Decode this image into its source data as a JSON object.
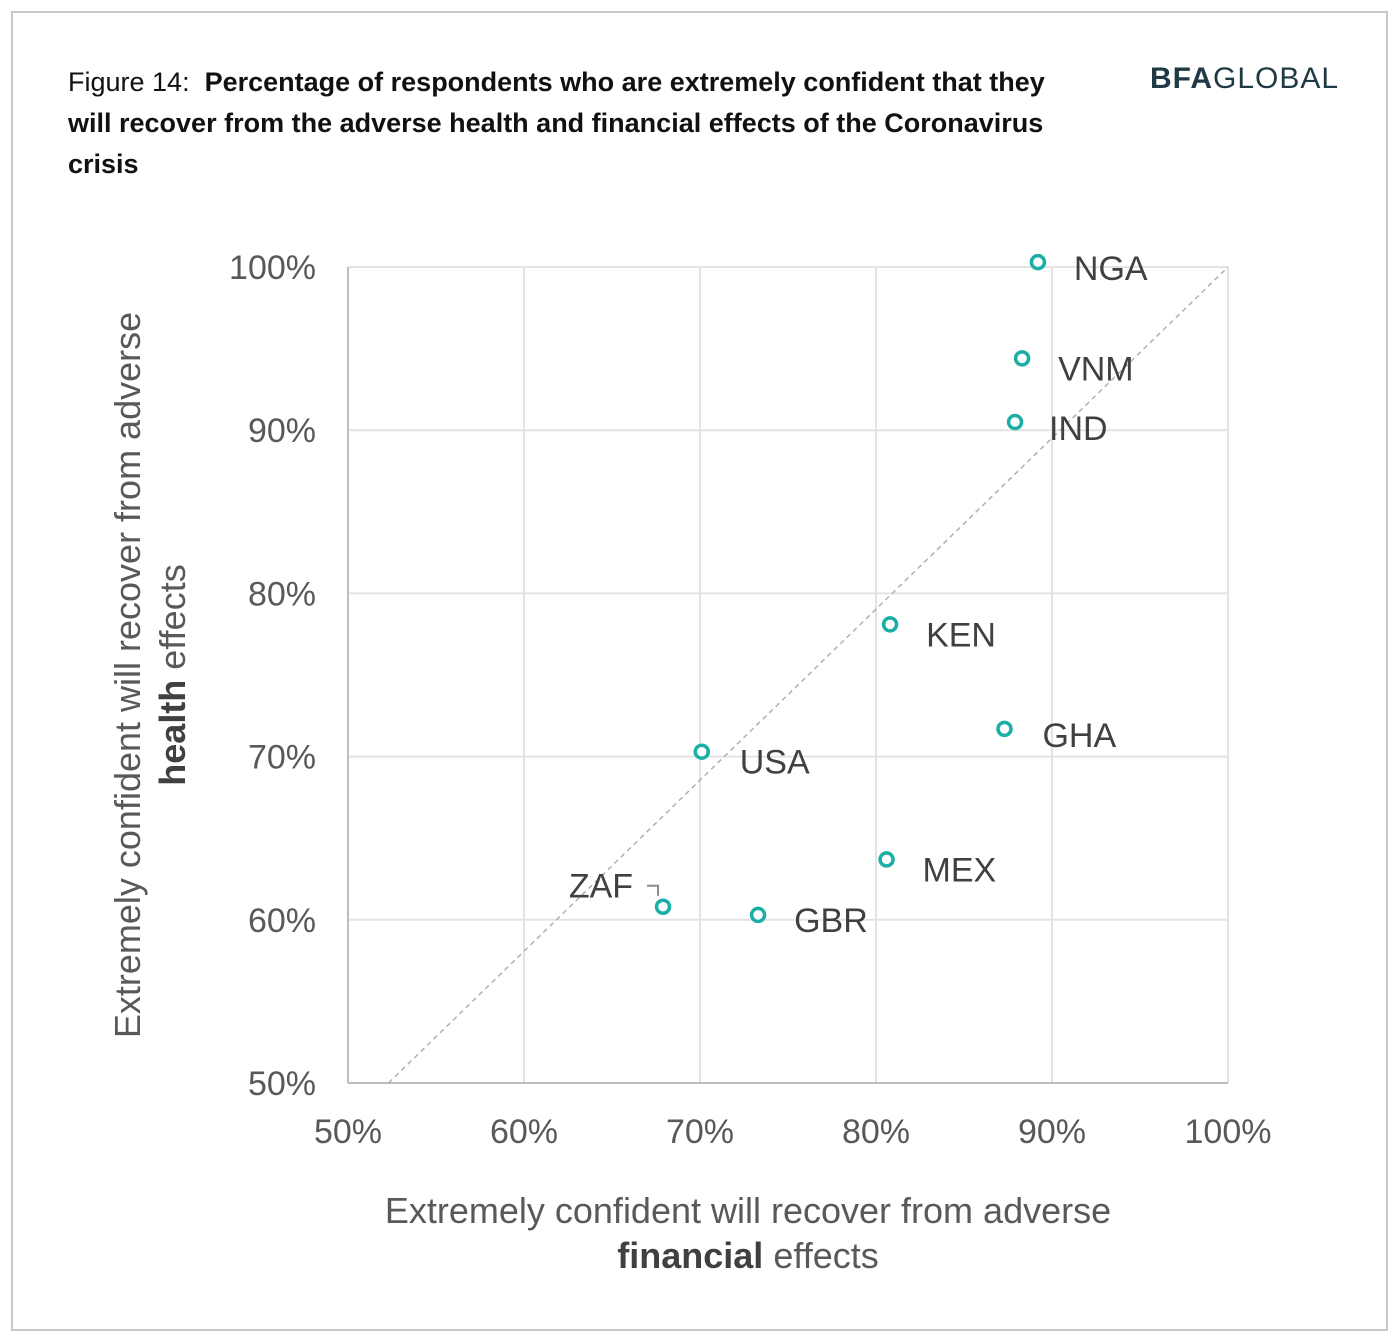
{
  "figure": {
    "prefix": "Figure 14:",
    "title": "Percentage of respondents who are extremely confident that they will recover from the adverse health and financial effects of the Coronavirus crisis"
  },
  "logo": {
    "part1": "BF",
    "part2": "A",
    "part3": "GLOBAL"
  },
  "chart_data": {
    "type": "scatter",
    "xlabel_line1": "Extremely confident will recover from adverse",
    "xlabel_bold": "financial",
    "xlabel_rest": " effects",
    "ylabel_line1": "Extremely confident will recover from adverse",
    "ylabel_bold": "health",
    "ylabel_rest": " effects",
    "xlim": [
      0.5,
      1.0
    ],
    "ylim": [
      0.5,
      1.0
    ],
    "xticks": [
      0.5,
      0.6,
      0.7,
      0.8,
      0.9,
      1.0
    ],
    "yticks": [
      0.5,
      0.6,
      0.7,
      0.8,
      0.9,
      1.0
    ],
    "tick_labels_x": [
      "50%",
      "60%",
      "70%",
      "80%",
      "90%",
      "100%"
    ],
    "tick_labels_y": [
      "50%",
      "60%",
      "70%",
      "80%",
      "90%",
      "100%"
    ],
    "grid": true,
    "reference_line": "diagonal y = x (dashed)",
    "marker_color": "#1aaea4",
    "points": [
      {
        "label": "NGA",
        "x": 0.892,
        "y": 1.003
      },
      {
        "label": "VNM",
        "x": 0.883,
        "y": 0.944
      },
      {
        "label": "IND",
        "x": 0.879,
        "y": 0.905
      },
      {
        "label": "KEN",
        "x": 0.808,
        "y": 0.781
      },
      {
        "label": "GHA",
        "x": 0.873,
        "y": 0.717
      },
      {
        "label": "USA",
        "x": 0.701,
        "y": 0.703
      },
      {
        "label": "MEX",
        "x": 0.806,
        "y": 0.637
      },
      {
        "label": "ZAF",
        "x": 0.679,
        "y": 0.608
      },
      {
        "label": "GBR",
        "x": 0.733,
        "y": 0.603
      }
    ]
  }
}
